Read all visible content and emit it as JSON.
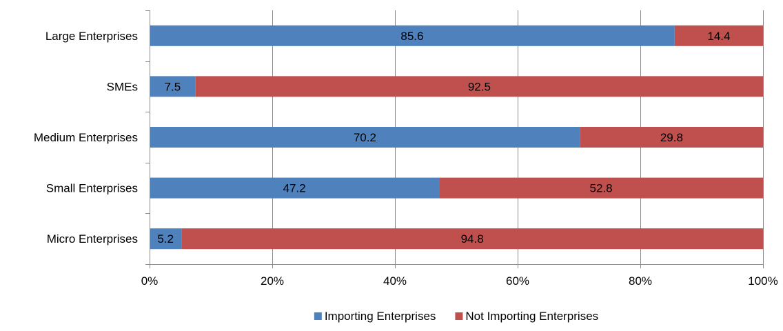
{
  "chart_data": {
    "type": "bar",
    "orientation": "horizontal",
    "stacked": "percent",
    "title": "",
    "xlabel": "",
    "ylabel": "",
    "categories": [
      "Large Enterprises",
      "SMEs",
      "Medium Enterprises",
      "Small Enterprises",
      "Micro Enterprises"
    ],
    "series": [
      {
        "name": "Importing Enterprises",
        "values": [
          85.6,
          7.5,
          70.2,
          47.2,
          5.2
        ],
        "color": "#4F81BD"
      },
      {
        "name": "Not Importing Enterprises",
        "values": [
          14.4,
          92.5,
          29.8,
          52.8,
          94.8
        ],
        "color": "#C0504D"
      }
    ],
    "data_labels": {
      "Importing Enterprises": [
        "85.6",
        "7.5",
        "70.2",
        "47.2",
        "5.2"
      ],
      "Not Importing Enterprises": [
        "14.4",
        "92.5",
        "29.8",
        "52.8",
        "94.8"
      ]
    },
    "xlim": [
      0,
      100
    ],
    "x_ticks": [
      0,
      20,
      40,
      60,
      80,
      100
    ],
    "x_tick_labels": [
      "0%",
      "20%",
      "40%",
      "60%",
      "80%",
      "100%"
    ],
    "grid": "vertical",
    "legend": "bottom"
  }
}
